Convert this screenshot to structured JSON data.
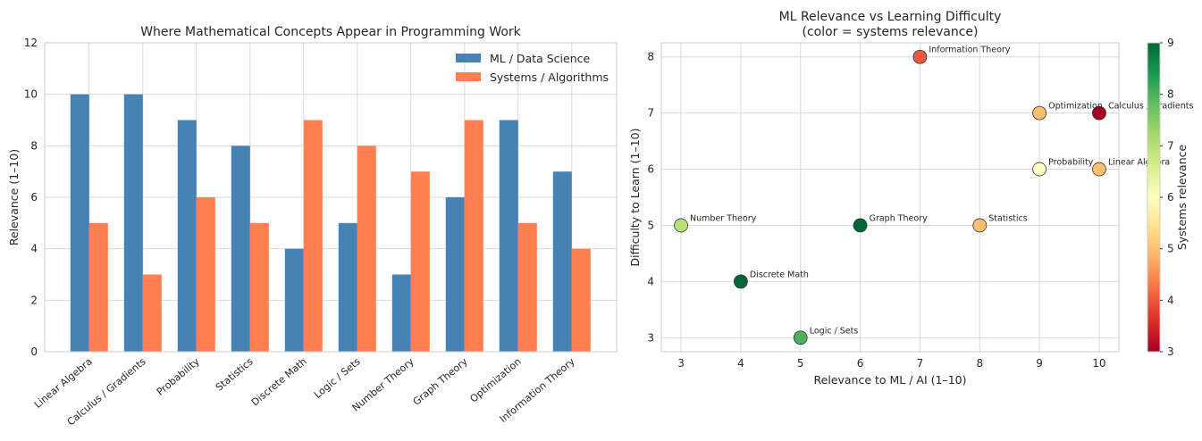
{
  "chart_data": [
    {
      "type": "bar",
      "title": "Where Mathematical Concepts Appear in Programming Work",
      "xlabel": "",
      "ylabel": "Relevance (1–10)",
      "ylim": [
        0,
        12
      ],
      "yticks": [
        0,
        2,
        4,
        6,
        8,
        10,
        12
      ],
      "grid": true,
      "legend_position": "top-right",
      "categories": [
        "Linear Algebra",
        "Calculus / Gradients",
        "Probability",
        "Statistics",
        "Discrete Math",
        "Logic / Sets",
        "Number Theory",
        "Graph Theory",
        "Optimization",
        "Information Theory"
      ],
      "series": [
        {
          "name": "ML / Data Science",
          "color": "#4682b4",
          "values": [
            10,
            10,
            9,
            8,
            4,
            5,
            3,
            6,
            9,
            7
          ]
        },
        {
          "name": "Systems / Algorithms",
          "color": "#ff7f50",
          "values": [
            5,
            3,
            6,
            5,
            9,
            8,
            7,
            9,
            5,
            4
          ]
        }
      ]
    },
    {
      "type": "scatter",
      "title": "ML Relevance vs Learning Difficulty",
      "subtitle": "(color = systems relevance)",
      "xlabel": "Relevance to ML / AI (1–10)",
      "ylabel": "Difficulty to Learn (1–10)",
      "xlim": [
        2.67,
        10.33
      ],
      "ylim": [
        2.75,
        8.25
      ],
      "xticks": [
        3,
        4,
        5,
        6,
        7,
        8,
        9,
        10
      ],
      "yticks": [
        3,
        4,
        5,
        6,
        7,
        8
      ],
      "grid": true,
      "colorbar": {
        "label": "Systems relevance",
        "range": [
          3,
          9
        ],
        "ticks": [
          3,
          4,
          5,
          6,
          7,
          8,
          9
        ],
        "colormap": "RdYlGn"
      },
      "points": [
        {
          "label": "Linear Algebra",
          "x": 10,
          "y": 6,
          "c": 5
        },
        {
          "label": "Calculus / Gradients",
          "x": 10,
          "y": 7,
          "c": 3
        },
        {
          "label": "Probability",
          "x": 9,
          "y": 6,
          "c": 6
        },
        {
          "label": "Statistics",
          "x": 8,
          "y": 5,
          "c": 5
        },
        {
          "label": "Discrete Math",
          "x": 4,
          "y": 4,
          "c": 9
        },
        {
          "label": "Logic / Sets",
          "x": 5,
          "y": 3,
          "c": 8
        },
        {
          "label": "Number Theory",
          "x": 3,
          "y": 5,
          "c": 7
        },
        {
          "label": "Graph Theory",
          "x": 6,
          "y": 5,
          "c": 9
        },
        {
          "label": "Optimization",
          "x": 9,
          "y": 7,
          "c": 5
        },
        {
          "label": "Information Theory",
          "x": 7,
          "y": 8,
          "c": 4
        }
      ]
    }
  ]
}
